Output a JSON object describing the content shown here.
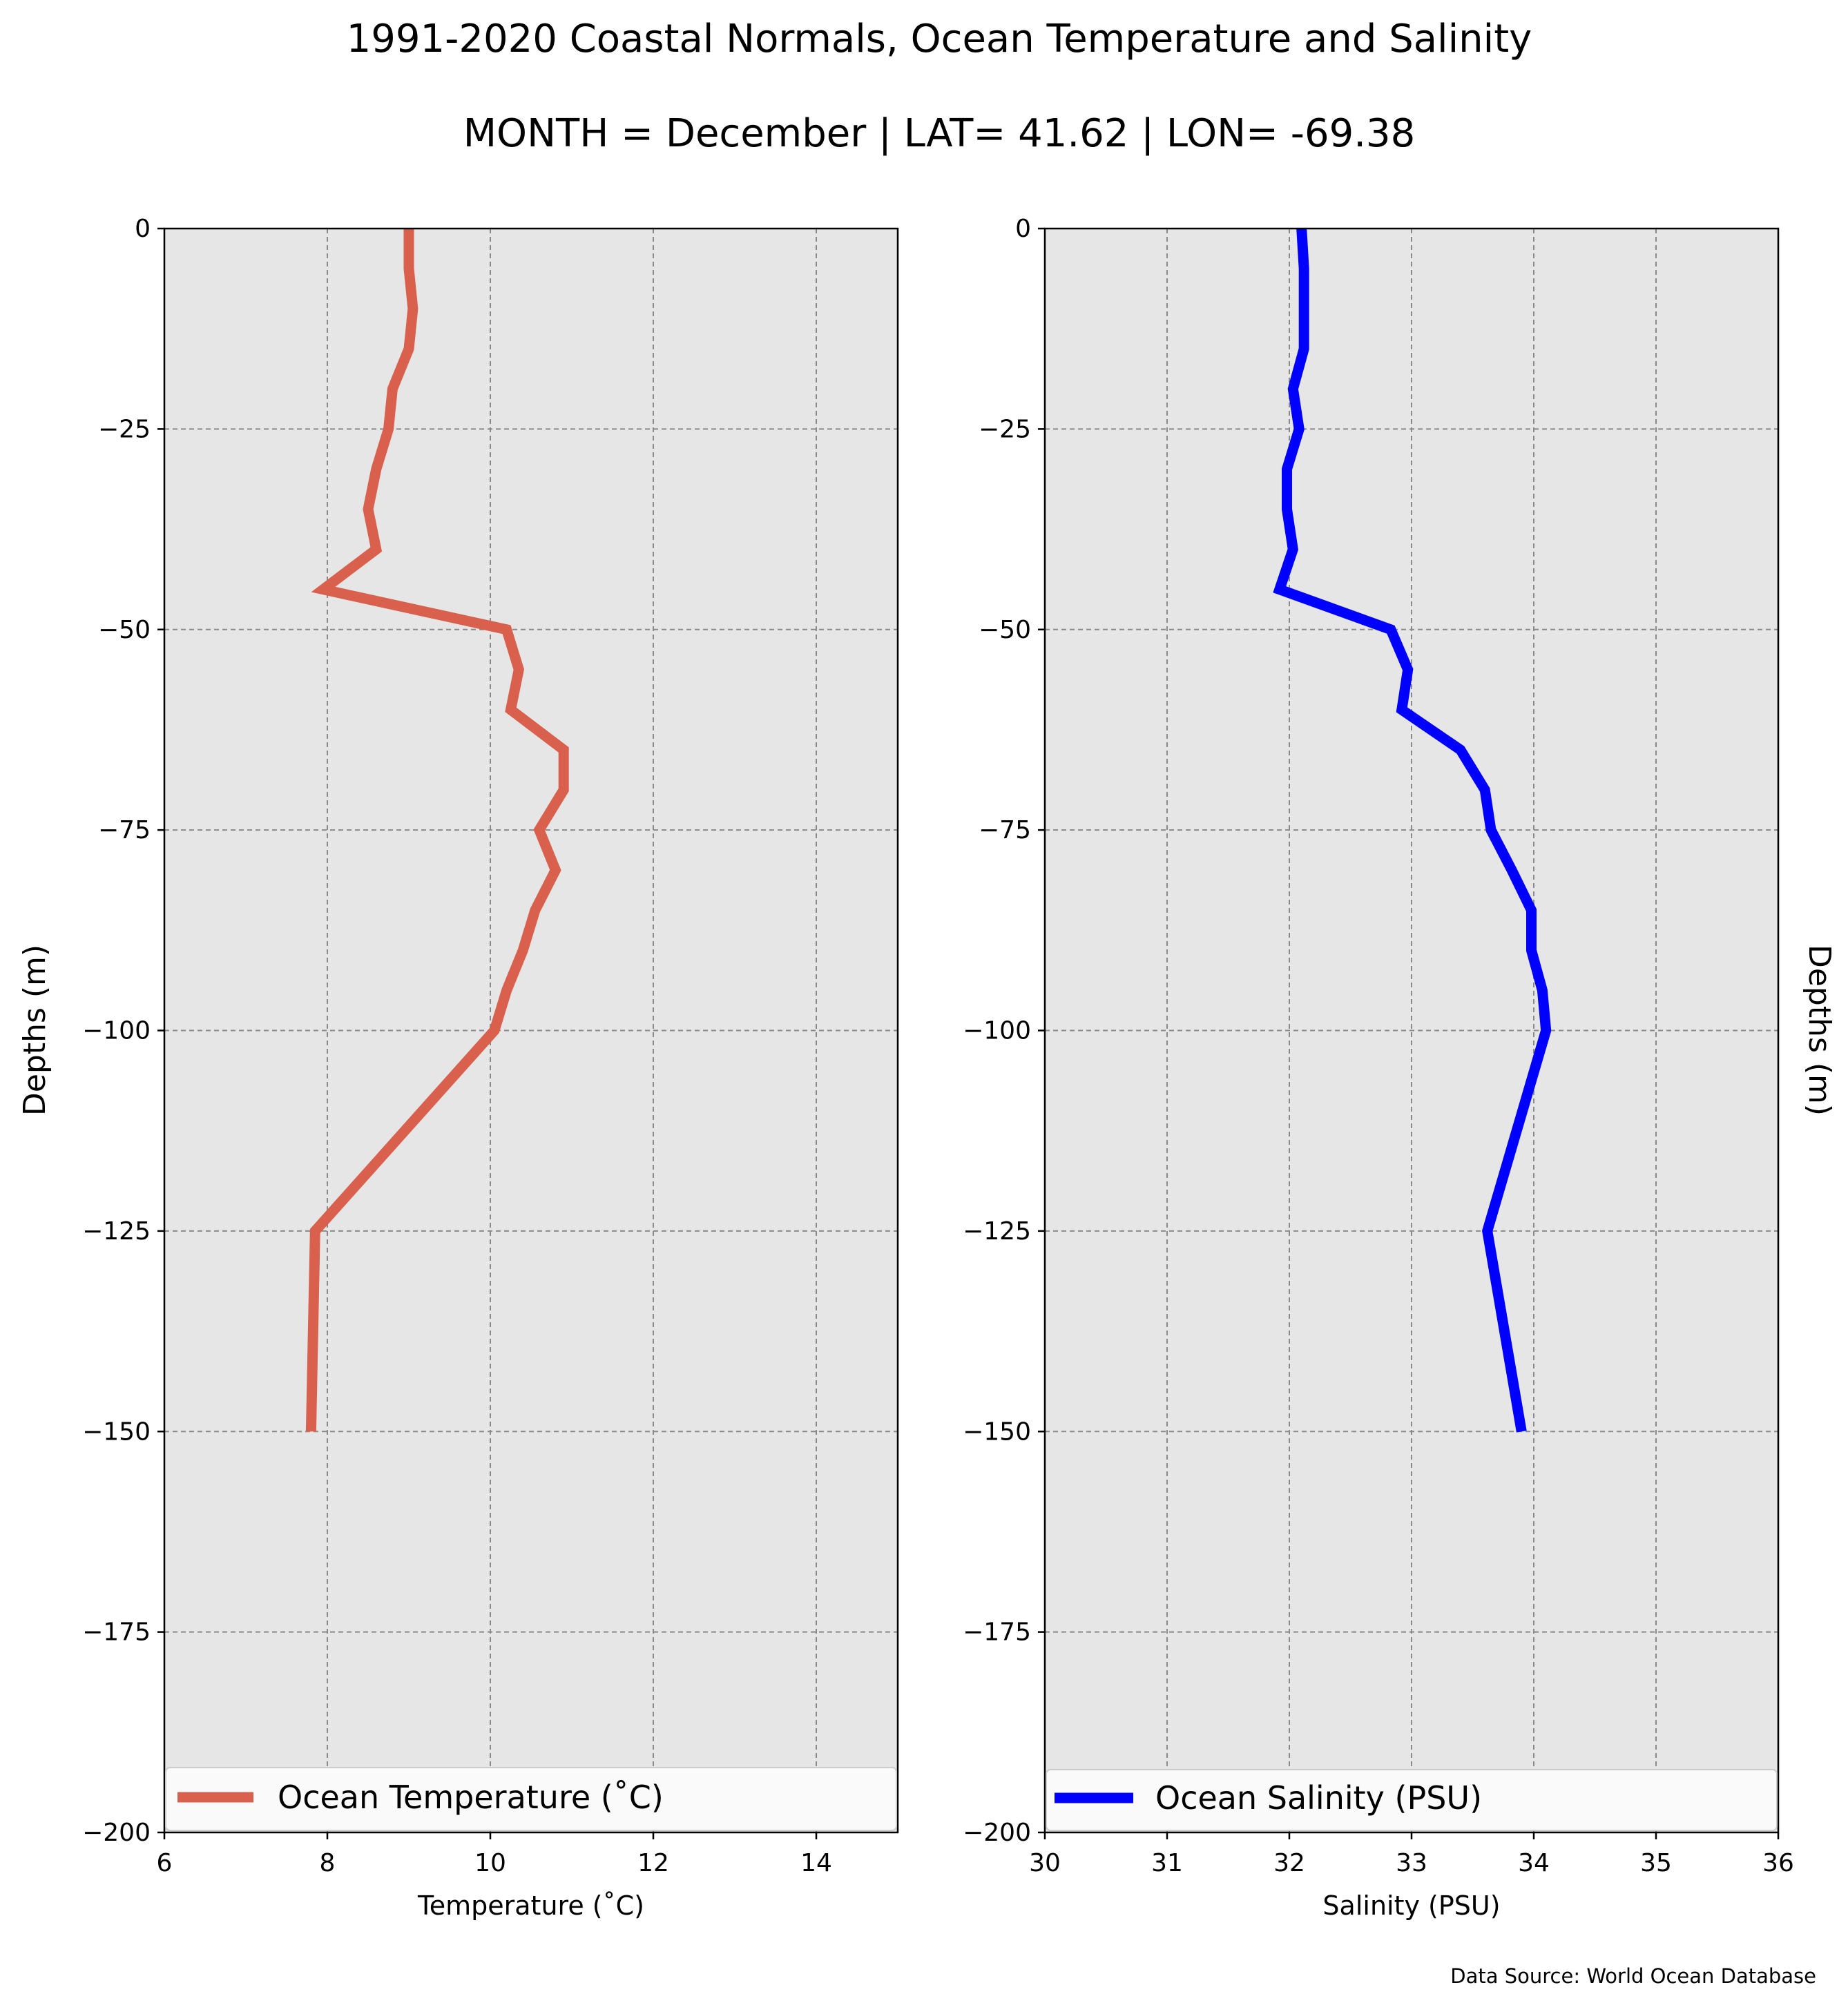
{
  "header": {
    "title": "1991-2020 Coastal Normals, Ocean Temperature and Salinity",
    "subtitle": "MONTH = December | LAT= 41.62 | LON= -69.38"
  },
  "footer": {
    "source": "Data Source: World Ocean Database"
  },
  "chart_data": [
    {
      "type": "line",
      "xlabel": "Temperature ($^\\circ$C)",
      "xlabel_text": "Temperature (˚C)",
      "ylabel": "Depths (m)",
      "xlim": [
        6,
        15
      ],
      "ylim": [
        -200,
        0
      ],
      "xticks": [
        6,
        8,
        10,
        12,
        14
      ],
      "yticks": [
        0,
        -25,
        -50,
        -75,
        -100,
        -125,
        -150,
        -175,
        -200
      ],
      "grid": true,
      "legend_placement": "lower center",
      "color": "#d9604c",
      "series": [
        {
          "name": "Ocean Temperature (˚C)",
          "x": [
            9.0,
            9.0,
            9.05,
            9.0,
            8.8,
            8.75,
            8.6,
            8.5,
            8.6,
            7.95,
            10.2,
            10.35,
            10.25,
            10.9,
            10.9,
            10.6,
            10.8,
            10.55,
            10.4,
            10.2,
            10.05,
            7.85,
            7.8
          ],
          "y": [
            0,
            -5,
            -10,
            -15,
            -20,
            -25,
            -30,
            -35,
            -40,
            -45,
            -50,
            -55,
            -60,
            -65,
            -70,
            -75,
            -80,
            -85,
            -90,
            -95,
            -100,
            -125,
            -150
          ]
        }
      ]
    },
    {
      "type": "line",
      "xlabel": "Salinity (PSU)",
      "ylabel": "Depths (m)",
      "xlim": [
        30,
        36
      ],
      "ylim": [
        -200,
        0
      ],
      "xticks": [
        30,
        31,
        32,
        33,
        34,
        35,
        36
      ],
      "yticks": [
        0,
        -25,
        -50,
        -75,
        -100,
        -125,
        -150,
        -175,
        -200
      ],
      "grid": true,
      "legend_placement": "lower center",
      "color": "#0000ff",
      "series": [
        {
          "name": "Ocean Salinity (PSU)",
          "x": [
            32.1,
            32.12,
            32.12,
            32.12,
            32.03,
            32.08,
            31.98,
            31.98,
            32.03,
            31.92,
            32.83,
            32.97,
            32.92,
            33.4,
            33.6,
            33.65,
            33.82,
            33.98,
            33.98,
            34.07,
            34.1,
            33.62,
            33.9
          ],
          "y": [
            0,
            -5,
            -10,
            -15,
            -20,
            -25,
            -30,
            -35,
            -40,
            -45,
            -50,
            -55,
            -60,
            -65,
            -70,
            -75,
            -80,
            -85,
            -90,
            -95,
            -100,
            -125,
            -150
          ]
        }
      ]
    }
  ]
}
